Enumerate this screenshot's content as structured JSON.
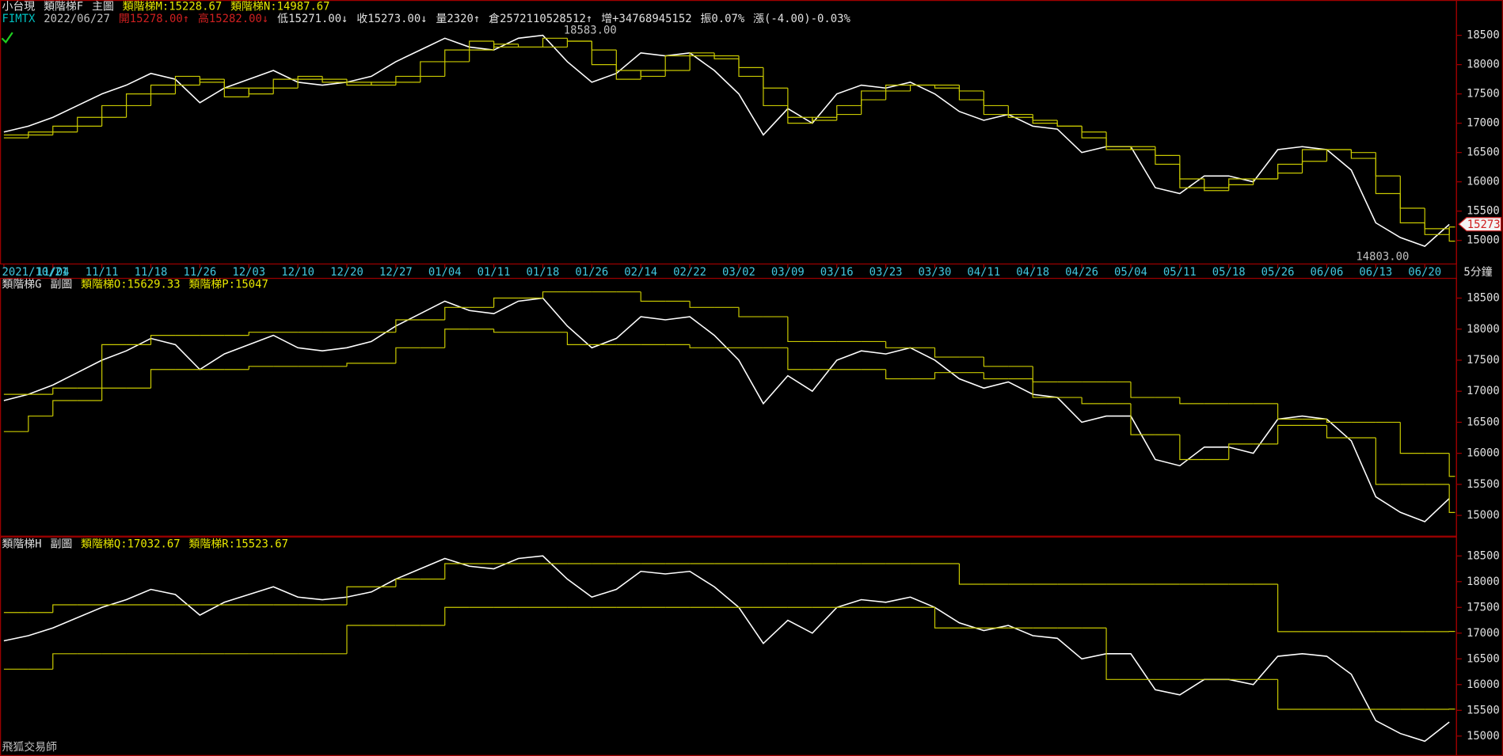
{
  "app_name": "飛狐交易師",
  "chart_data": [
    {
      "type": "line",
      "header": [
        [
          {
            "text": "小台現",
            "color": "#e0e0e0"
          },
          {
            "text": "類階梯F",
            "color": "#e0e0e0"
          },
          {
            "text": "主圖",
            "color": "#e0e0e0"
          },
          {
            "text": "類階梯M:15228.67",
            "color": "#e8e800"
          },
          {
            "text": "類階梯N:14987.67",
            "color": "#e8e800"
          }
        ],
        [
          {
            "text": "FIMTX",
            "color": "#00c0c0"
          },
          {
            "text": "2022/06/27",
            "color": "#c0c0c0"
          },
          {
            "text": "開15278.00↑",
            "color": "#d02020"
          },
          {
            "text": "高15282.00↓",
            "color": "#d02020"
          },
          {
            "text": "低15271.00↓",
            "color": "#e0e0e0"
          },
          {
            "text": "收15273.00↓",
            "color": "#e0e0e0"
          },
          {
            "text": "量2320↑",
            "color": "#e0e0e0"
          },
          {
            "text": "倉2572110528512↑",
            "color": "#e0e0e0"
          },
          {
            "text": "增+34768945152",
            "color": "#e0e0e0"
          },
          {
            "text": "振0.07%",
            "color": "#e0e0e0"
          },
          {
            "text": "漲(-4.00)-0.03%",
            "color": "#e0e0e0"
          }
        ]
      ],
      "annotations": [
        "18583.00",
        "14803.00"
      ],
      "price_tag": "15273",
      "timeframe": "5分鐘",
      "categories": [
        "2021/10/21",
        null,
        "11/04",
        null,
        "11/11",
        null,
        "11/18",
        null,
        "11/26",
        null,
        "12/03",
        null,
        "12/10",
        null,
        "12/20",
        null,
        "12/27",
        null,
        "01/04",
        null,
        "01/11",
        null,
        "01/18",
        null,
        "01/26",
        null,
        "02/14",
        null,
        "02/22",
        null,
        "03/02",
        null,
        "03/09",
        null,
        "03/16",
        null,
        "03/23",
        null,
        "03/30",
        null,
        "04/11",
        null,
        "04/18",
        null,
        "04/26",
        null,
        "05/04",
        null,
        "05/11",
        null,
        "05/18",
        null,
        "05/26",
        null,
        "06/06",
        null,
        "06/13",
        null,
        "06/20",
        null
      ],
      "ylim": [
        14590,
        19070
      ],
      "yticks": [
        15000,
        15500,
        16000,
        16500,
        17000,
        17500,
        18000,
        18500
      ],
      "series": [
        {
          "name": "類階梯F",
          "color": "#ffffff",
          "step": false,
          "values": [
            16850,
            16950,
            17100,
            17300,
            17500,
            17650,
            17850,
            17750,
            17350,
            17600,
            17750,
            17900,
            17700,
            17650,
            17700,
            17800,
            18050,
            18250,
            18450,
            18300,
            18250,
            18450,
            18500,
            18050,
            17700,
            17850,
            18200,
            18150,
            18200,
            17900,
            17500,
            16800,
            17250,
            17000,
            17500,
            17650,
            17600,
            17700,
            17500,
            17200,
            17050,
            17150,
            16950,
            16900,
            16500,
            16600,
            16600,
            15900,
            15800,
            16100,
            16100,
            16000,
            16550,
            16600,
            16550,
            16200,
            15300,
            15050,
            14900,
            15273
          ]
        },
        {
          "name": "類階梯M",
          "color": "#c8c800",
          "step": true,
          "values": [
            16800,
            16850,
            16950,
            17100,
            17300,
            17500,
            17650,
            17800,
            17700,
            17450,
            17600,
            17750,
            17800,
            17700,
            17650,
            17700,
            17800,
            18050,
            18250,
            18400,
            18300,
            18300,
            18450,
            18400,
            18000,
            17750,
            17900,
            18150,
            18200,
            18100,
            17800,
            17300,
            17000,
            17100,
            17300,
            17550,
            17650,
            17650,
            17600,
            17400,
            17150,
            17100,
            17000,
            16950,
            16750,
            16550,
            16600,
            16300,
            15900,
            15900,
            16050,
            16050,
            16300,
            16550,
            16550,
            16400,
            15800,
            15300,
            15100,
            15228.67
          ]
        },
        {
          "name": "類階梯N",
          "color": "#c8c800",
          "step": true,
          "values": [
            16750,
            16800,
            16850,
            16950,
            17100,
            17300,
            17500,
            17650,
            17750,
            17600,
            17500,
            17600,
            17750,
            17750,
            17700,
            17650,
            17700,
            17800,
            18050,
            18250,
            18350,
            18300,
            18300,
            18400,
            18250,
            17900,
            17800,
            17900,
            18150,
            18150,
            17950,
            17600,
            17100,
            17050,
            17150,
            17400,
            17550,
            17650,
            17650,
            17550,
            17300,
            17150,
            17050,
            16950,
            16850,
            16600,
            16550,
            16450,
            16050,
            15850,
            15950,
            16050,
            16150,
            16350,
            16550,
            16500,
            16100,
            15550,
            15200,
            14987.67
          ]
        }
      ]
    },
    {
      "type": "line",
      "header": [
        [
          {
            "text": "類階梯G",
            "color": "#e0e0e0"
          },
          {
            "text": "副圖",
            "color": "#e0e0e0"
          },
          {
            "text": "類階梯O:15629.33",
            "color": "#e8e800"
          },
          {
            "text": "類階梯P:15047",
            "color": "#e8e800"
          }
        ]
      ],
      "ylim": [
        14690,
        18810
      ],
      "yticks": [
        15000,
        15500,
        16000,
        16500,
        17000,
        17500,
        18000,
        18500
      ],
      "series": [
        {
          "name": "類階梯G",
          "color": "#ffffff",
          "step": false,
          "values": [
            16850,
            16950,
            17100,
            17300,
            17500,
            17650,
            17850,
            17750,
            17350,
            17600,
            17750,
            17900,
            17700,
            17650,
            17700,
            17800,
            18050,
            18250,
            18450,
            18300,
            18250,
            18450,
            18500,
            18050,
            17700,
            17850,
            18200,
            18150,
            18200,
            17900,
            17500,
            16800,
            17250,
            17000,
            17500,
            17650,
            17600,
            17700,
            17500,
            17200,
            17050,
            17150,
            16950,
            16900,
            16500,
            16600,
            16600,
            15900,
            15800,
            16100,
            16100,
            16000,
            16550,
            16600,
            16550,
            16200,
            15300,
            15050,
            14900,
            15273
          ]
        },
        {
          "name": "類階梯O",
          "color": "#c8c800",
          "step": true,
          "values": [
            16950,
            16950,
            17050,
            17050,
            17750,
            17750,
            17900,
            17900,
            17900,
            17900,
            17950,
            17950,
            17950,
            17950,
            17950,
            17950,
            18150,
            18150,
            18350,
            18350,
            18500,
            18500,
            18600,
            18600,
            18600,
            18600,
            18450,
            18450,
            18350,
            18350,
            18200,
            18200,
            17800,
            17800,
            17800,
            17800,
            17700,
            17700,
            17550,
            17550,
            17400,
            17400,
            17150,
            17150,
            17150,
            17150,
            16900,
            16900,
            16800,
            16800,
            16800,
            16800,
            16550,
            16550,
            16500,
            16500,
            16500,
            16000,
            16000,
            15629.33
          ]
        },
        {
          "name": "類階梯P",
          "color": "#c8c800",
          "step": true,
          "values": [
            16350,
            16600,
            16850,
            16850,
            17050,
            17050,
            17350,
            17350,
            17350,
            17350,
            17400,
            17400,
            17400,
            17400,
            17450,
            17450,
            17700,
            17700,
            18000,
            18000,
            17950,
            17950,
            17950,
            17750,
            17750,
            17750,
            17750,
            17750,
            17700,
            17700,
            17700,
            17700,
            17350,
            17350,
            17350,
            17350,
            17200,
            17200,
            17300,
            17300,
            17200,
            17200,
            16900,
            16900,
            16800,
            16800,
            16300,
            16300,
            15900,
            15900,
            16150,
            16150,
            16450,
            16450,
            16250,
            16250,
            15500,
            15500,
            15500,
            15047
          ]
        }
      ]
    },
    {
      "type": "line",
      "header": [
        [
          {
            "text": "類階梯H",
            "color": "#e0e0e0"
          },
          {
            "text": "副圖",
            "color": "#e0e0e0"
          },
          {
            "text": "類階梯Q:17032.67",
            "color": "#e8e800"
          },
          {
            "text": "類階梯R:15523.67",
            "color": "#e8e800"
          }
        ]
      ],
      "ylim": [
        14650,
        18820
      ],
      "yticks": [
        15000,
        15500,
        16000,
        16500,
        17000,
        17500,
        18000,
        18500
      ],
      "series": [
        {
          "name": "類階梯H",
          "color": "#ffffff",
          "step": false,
          "values": [
            16850,
            16950,
            17100,
            17300,
            17500,
            17650,
            17850,
            17750,
            17350,
            17600,
            17750,
            17900,
            17700,
            17650,
            17700,
            17800,
            18050,
            18250,
            18450,
            18300,
            18250,
            18450,
            18500,
            18050,
            17700,
            17850,
            18200,
            18150,
            18200,
            17900,
            17500,
            16800,
            17250,
            17000,
            17500,
            17650,
            17600,
            17700,
            17500,
            17200,
            17050,
            17150,
            16950,
            16900,
            16500,
            16600,
            16600,
            15900,
            15800,
            16100,
            16100,
            16000,
            16550,
            16600,
            16550,
            16200,
            15300,
            15050,
            14900,
            15273
          ]
        },
        {
          "name": "類階梯Q",
          "color": "#c8c800",
          "step": true,
          "values": [
            17400,
            17400,
            17550,
            17550,
            17550,
            17550,
            17550,
            17550,
            17550,
            17550,
            17550,
            17550,
            17550,
            17550,
            17900,
            17900,
            18050,
            18050,
            18350,
            18350,
            18350,
            18350,
            18350,
            18350,
            18350,
            18350,
            18350,
            18350,
            18350,
            18350,
            18350,
            18350,
            18350,
            18350,
            18350,
            18350,
            18350,
            18350,
            18350,
            17950,
            17950,
            17950,
            17950,
            17950,
            17950,
            17950,
            17950,
            17950,
            17950,
            17950,
            17950,
            17950,
            17030,
            17030,
            17030,
            17030,
            17030,
            17030,
            17030,
            17032.67
          ]
        },
        {
          "name": "類階梯R",
          "color": "#c8c800",
          "step": true,
          "values": [
            16300,
            16300,
            16600,
            16600,
            16600,
            16600,
            16600,
            16600,
            16600,
            16600,
            16600,
            16600,
            16600,
            16600,
            17150,
            17150,
            17150,
            17150,
            17500,
            17500,
            17500,
            17500,
            17500,
            17500,
            17500,
            17500,
            17500,
            17500,
            17500,
            17500,
            17500,
            17500,
            17500,
            17500,
            17500,
            17500,
            17500,
            17500,
            17100,
            17100,
            17100,
            17100,
            17100,
            17100,
            17100,
            16100,
            16100,
            16100,
            16100,
            16100,
            16100,
            16100,
            15520,
            15520,
            15520,
            15520,
            15520,
            15520,
            15520,
            15523.67
          ]
        }
      ]
    }
  ]
}
